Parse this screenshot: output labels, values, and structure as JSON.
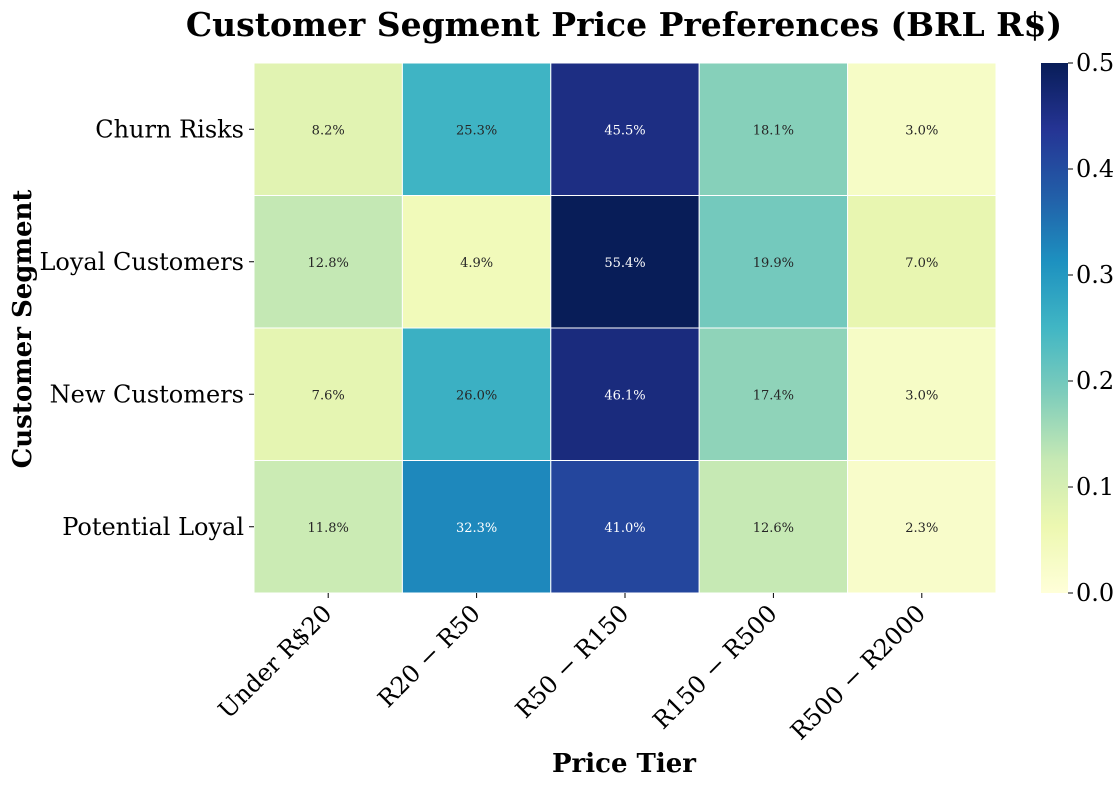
{
  "chart_data": {
    "type": "heatmap",
    "title": "Customer Segment Price Preferences (BRL R$)",
    "xlabel": "Price Tier",
    "ylabel": "Customer Segment",
    "x_categories": [
      "Under R$20",
      "R20 − R50",
      "R50 − R150",
      "R150 − R500",
      "R500 − R2000"
    ],
    "y_categories": [
      "Churn Risks",
      "Loyal Customers",
      "New Customers",
      "Potential Loyal"
    ],
    "values": [
      [
        0.082,
        0.253,
        0.455,
        0.181,
        0.03
      ],
      [
        0.128,
        0.049,
        0.554,
        0.199,
        0.07
      ],
      [
        0.076,
        0.26,
        0.461,
        0.174,
        0.03
      ],
      [
        0.118,
        0.323,
        0.41,
        0.126,
        0.023
      ]
    ],
    "labels": [
      [
        "8.2%",
        "25.3%",
        "45.5%",
        "18.1%",
        "3.0%"
      ],
      [
        "12.8%",
        "4.9%",
        "55.4%",
        "19.9%",
        "7.0%"
      ],
      [
        "7.6%",
        "26.0%",
        "46.1%",
        "17.4%",
        "3.0%"
      ],
      [
        "11.8%",
        "32.3%",
        "41.0%",
        "12.6%",
        "2.3%"
      ]
    ],
    "colorbar": {
      "range": [
        0.0,
        0.5
      ],
      "ticks": [
        "0.0",
        "0.1",
        "0.2",
        "0.3",
        "0.4",
        "0.5"
      ],
      "colormap": "YlGnBu"
    },
    "colormap_stops": [
      "#ffffd9",
      "#edf8b1",
      "#c7e9b4",
      "#7fcdbb",
      "#41b6c4",
      "#1d91c0",
      "#225ea8",
      "#253494",
      "#081d58"
    ],
    "label_color_dark": "#262626",
    "label_color_light": "#ffffff",
    "grid": false,
    "legend": "colorbar-right"
  }
}
